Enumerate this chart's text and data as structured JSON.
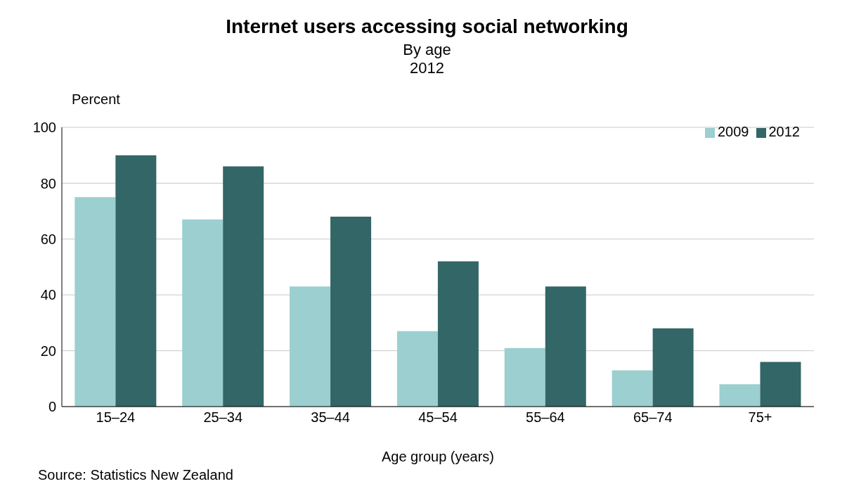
{
  "chart_data": {
    "type": "bar",
    "title": "Internet users accessing social networking",
    "subtitle": "By age\n2012",
    "xlabel": "Age group (years)",
    "ylabel": "Percent",
    "annotations": [
      "Source: Statistics New Zealand"
    ],
    "categories": [
      "15–24",
      "25–34",
      "35–44",
      "45–54",
      "55–64",
      "65–74",
      "75+"
    ],
    "series": [
      {
        "name": "2009",
        "color": "#9ccfcf",
        "values": [
          75,
          67,
          43,
          27,
          21,
          13,
          8
        ]
      },
      {
        "name": "2012",
        "color": "#336666",
        "values": [
          90,
          86,
          68,
          52,
          43,
          28,
          16
        ]
      }
    ],
    "ylim": [
      0,
      100
    ],
    "yticks": [
      0,
      20,
      40,
      60,
      80,
      100
    ],
    "grid": "y",
    "legend": "top right"
  }
}
